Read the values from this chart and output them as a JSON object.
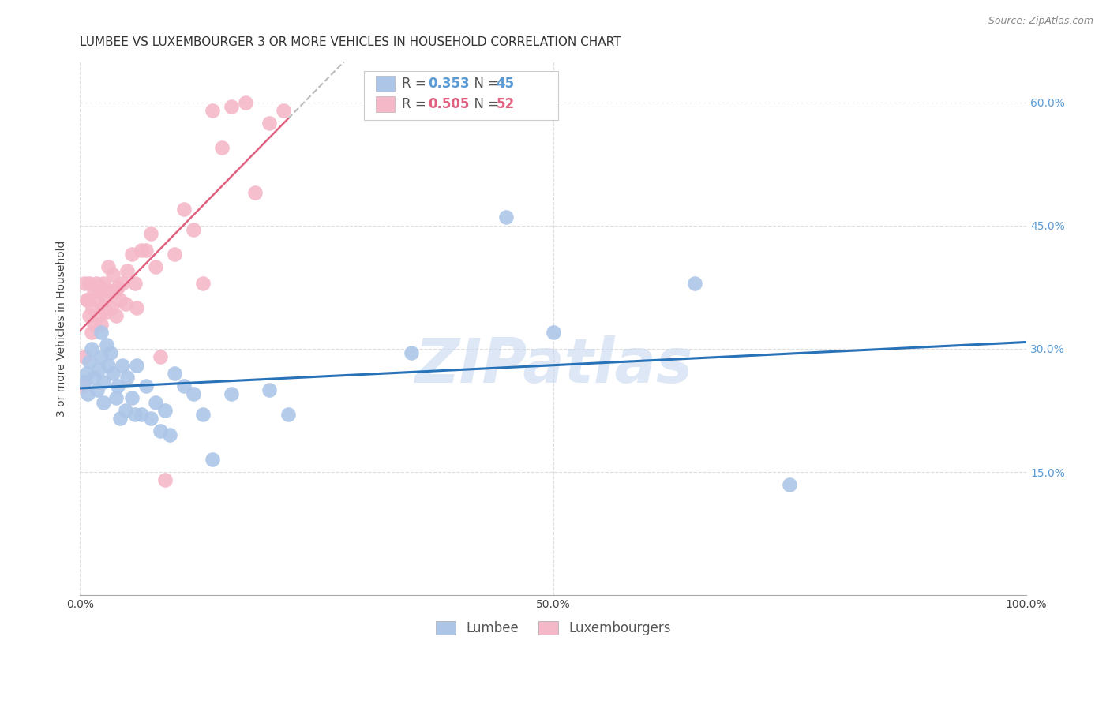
{
  "title": "LUMBEE VS LUXEMBOURGER 3 OR MORE VEHICLES IN HOUSEHOLD CORRELATION CHART",
  "source": "Source: ZipAtlas.com",
  "ylabel": "3 or more Vehicles in Household",
  "xlim": [
    0.0,
    1.0
  ],
  "ylim": [
    0.0,
    0.65
  ],
  "yticks": [
    0.0,
    0.15,
    0.3,
    0.45,
    0.6
  ],
  "yticklabels_right": [
    "",
    "15.0%",
    "30.0%",
    "45.0%",
    "60.0%"
  ],
  "xtick_positions": [
    0.0,
    0.5,
    1.0
  ],
  "xticklabels": [
    "0.0%",
    "50.0%",
    "100.0%"
  ],
  "legend_r_lumbee": "0.353",
  "legend_n_lumbee": "45",
  "legend_r_lux": "0.505",
  "legend_n_lux": "52",
  "lumbee_color": "#adc6e8",
  "luxembourger_color": "#f4b8c8",
  "lumbee_line_color": "#2872b8",
  "luxembourger_line_color": "#e06080",
  "luxembourger_dash_color": "#cccccc",
  "watermark": "ZIPatlas",
  "watermark_color": "#c8d8f0",
  "grid_color": "#dddddd",
  "background_color": "#ffffff",
  "title_fontsize": 11,
  "axis_label_fontsize": 10,
  "tick_fontsize": 10,
  "source_fontsize": 9,
  "lumbee_x": [
    0.005,
    0.007,
    0.008,
    0.01,
    0.012,
    0.015,
    0.018,
    0.02,
    0.022,
    0.022,
    0.025,
    0.025,
    0.028,
    0.03,
    0.032,
    0.035,
    0.038,
    0.04,
    0.042,
    0.045,
    0.048,
    0.05,
    0.055,
    0.058,
    0.06,
    0.065,
    0.07,
    0.075,
    0.08,
    0.085,
    0.09,
    0.095,
    0.1,
    0.11,
    0.12,
    0.13,
    0.14,
    0.16,
    0.2,
    0.22,
    0.35,
    0.45,
    0.5,
    0.65,
    0.75
  ],
  "lumbee_y": [
    0.26,
    0.27,
    0.245,
    0.285,
    0.3,
    0.265,
    0.25,
    0.275,
    0.29,
    0.32,
    0.26,
    0.235,
    0.305,
    0.28,
    0.295,
    0.27,
    0.24,
    0.255,
    0.215,
    0.28,
    0.225,
    0.265,
    0.24,
    0.22,
    0.28,
    0.22,
    0.255,
    0.215,
    0.235,
    0.2,
    0.225,
    0.195,
    0.27,
    0.255,
    0.245,
    0.22,
    0.165,
    0.245,
    0.25,
    0.22,
    0.295,
    0.46,
    0.32,
    0.38,
    0.135
  ],
  "luxembourger_x": [
    0.003,
    0.005,
    0.005,
    0.007,
    0.008,
    0.01,
    0.01,
    0.012,
    0.013,
    0.015,
    0.015,
    0.017,
    0.018,
    0.02,
    0.02,
    0.022,
    0.022,
    0.025,
    0.025,
    0.027,
    0.028,
    0.03,
    0.032,
    0.033,
    0.035,
    0.037,
    0.038,
    0.04,
    0.042,
    0.045,
    0.048,
    0.05,
    0.055,
    0.058,
    0.06,
    0.065,
    0.07,
    0.075,
    0.08,
    0.085,
    0.09,
    0.1,
    0.11,
    0.12,
    0.13,
    0.14,
    0.15,
    0.16,
    0.175,
    0.185,
    0.2,
    0.215
  ],
  "luxembourger_y": [
    0.255,
    0.38,
    0.29,
    0.36,
    0.36,
    0.38,
    0.34,
    0.32,
    0.35,
    0.37,
    0.33,
    0.38,
    0.36,
    0.37,
    0.34,
    0.375,
    0.33,
    0.38,
    0.35,
    0.36,
    0.345,
    0.4,
    0.37,
    0.35,
    0.39,
    0.37,
    0.34,
    0.375,
    0.36,
    0.38,
    0.355,
    0.395,
    0.415,
    0.38,
    0.35,
    0.42,
    0.42,
    0.44,
    0.4,
    0.29,
    0.14,
    0.415,
    0.47,
    0.445,
    0.38,
    0.59,
    0.545,
    0.595,
    0.6,
    0.49,
    0.575,
    0.59
  ]
}
